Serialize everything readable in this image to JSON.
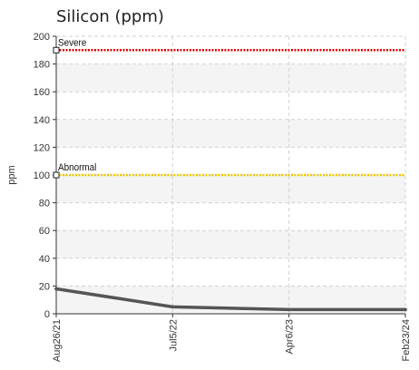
{
  "chart_data": {
    "type": "line",
    "title": "Silicon (ppm)",
    "ylabel": "ppm",
    "xlabel": "",
    "ylim": [
      0,
      200
    ],
    "yticks": [
      0,
      20,
      40,
      60,
      80,
      100,
      120,
      140,
      160,
      180,
      200
    ],
    "x": [
      "Aug26/21",
      "Jul5/22",
      "Apr6/23",
      "Feb23/24"
    ],
    "series": [
      {
        "values": [
          18,
          5,
          3,
          3
        ],
        "color": "#555555"
      }
    ],
    "thresholds": [
      {
        "label": "Severe",
        "value": 190,
        "color": "#e00000"
      },
      {
        "label": "Abnormal",
        "value": 100,
        "color": "#f0c800"
      }
    ],
    "grid": true,
    "band_colors": [
      "#ffffff",
      "#f4f4f4"
    ]
  }
}
